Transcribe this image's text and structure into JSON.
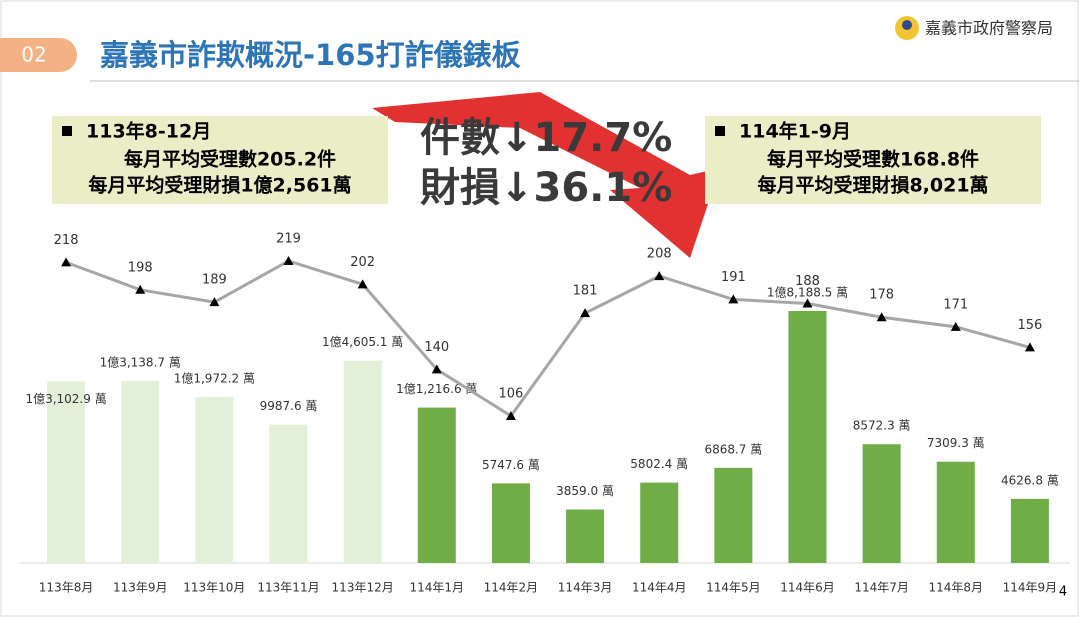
{
  "header": {
    "number": "02",
    "title": "嘉義市詐欺概況-165打詐儀錶板",
    "org": "嘉義市政府警察局"
  },
  "left_box": {
    "period": "113年8-12月",
    "line1": "每月平均受理數205.2件",
    "line2": "每月平均受理財損1億2,561萬"
  },
  "right_box": {
    "period": "114年1-9月",
    "line1": "每月平均受理數168.8件",
    "line2": "每月平均受理財損8,021萬"
  },
  "callout": {
    "line1": "件數↓17.7%",
    "line2": "財損↓36.1%"
  },
  "page_number": "4",
  "chart_data": {
    "type": "combo",
    "categories": [
      "113年8月",
      "113年9月",
      "113年10月",
      "113年11月",
      "113年12月",
      "114年1月",
      "114年2月",
      "114年3月",
      "114年4月",
      "114年5月",
      "114年6月",
      "114年7月",
      "114年8月",
      "114年9月"
    ],
    "series": [
      {
        "type": "bar",
        "colors": [
          "#e2efd9",
          "#e2efd9",
          "#e2efd9",
          "#e2efd9",
          "#e2efd9",
          "#70ad47",
          "#70ad47",
          "#70ad47",
          "#70ad47",
          "#70ad47",
          "#70ad47",
          "#70ad47",
          "#70ad47",
          "#70ad47"
        ],
        "values": [
          13102.9,
          13138.7,
          11972.2,
          9987.6,
          14605.1,
          11216.6,
          5747.6,
          3859.0,
          5802.4,
          6868.7,
          18188.5,
          8572.3,
          7309.3,
          4626.8
        ],
        "value_labels": [
          "1億3,102.9 萬",
          "1億3,138.7 萬",
          "1億1,972.2 萬",
          "9987.6 萬",
          "1億4,605.1 萬",
          "1億1,216.6 萬",
          "5747.6 萬",
          "3859.0 萬",
          "5802.4 萬",
          "6868.7 萬",
          "1億8,188.5 萬",
          "8572.3 萬",
          "7309.3 萬",
          "4626.8 萬"
        ]
      },
      {
        "type": "line",
        "color": "#a6a6a6",
        "values": [
          218,
          198,
          189,
          219,
          202,
          140,
          106,
          181,
          208,
          191,
          188,
          178,
          171,
          156
        ]
      }
    ]
  }
}
